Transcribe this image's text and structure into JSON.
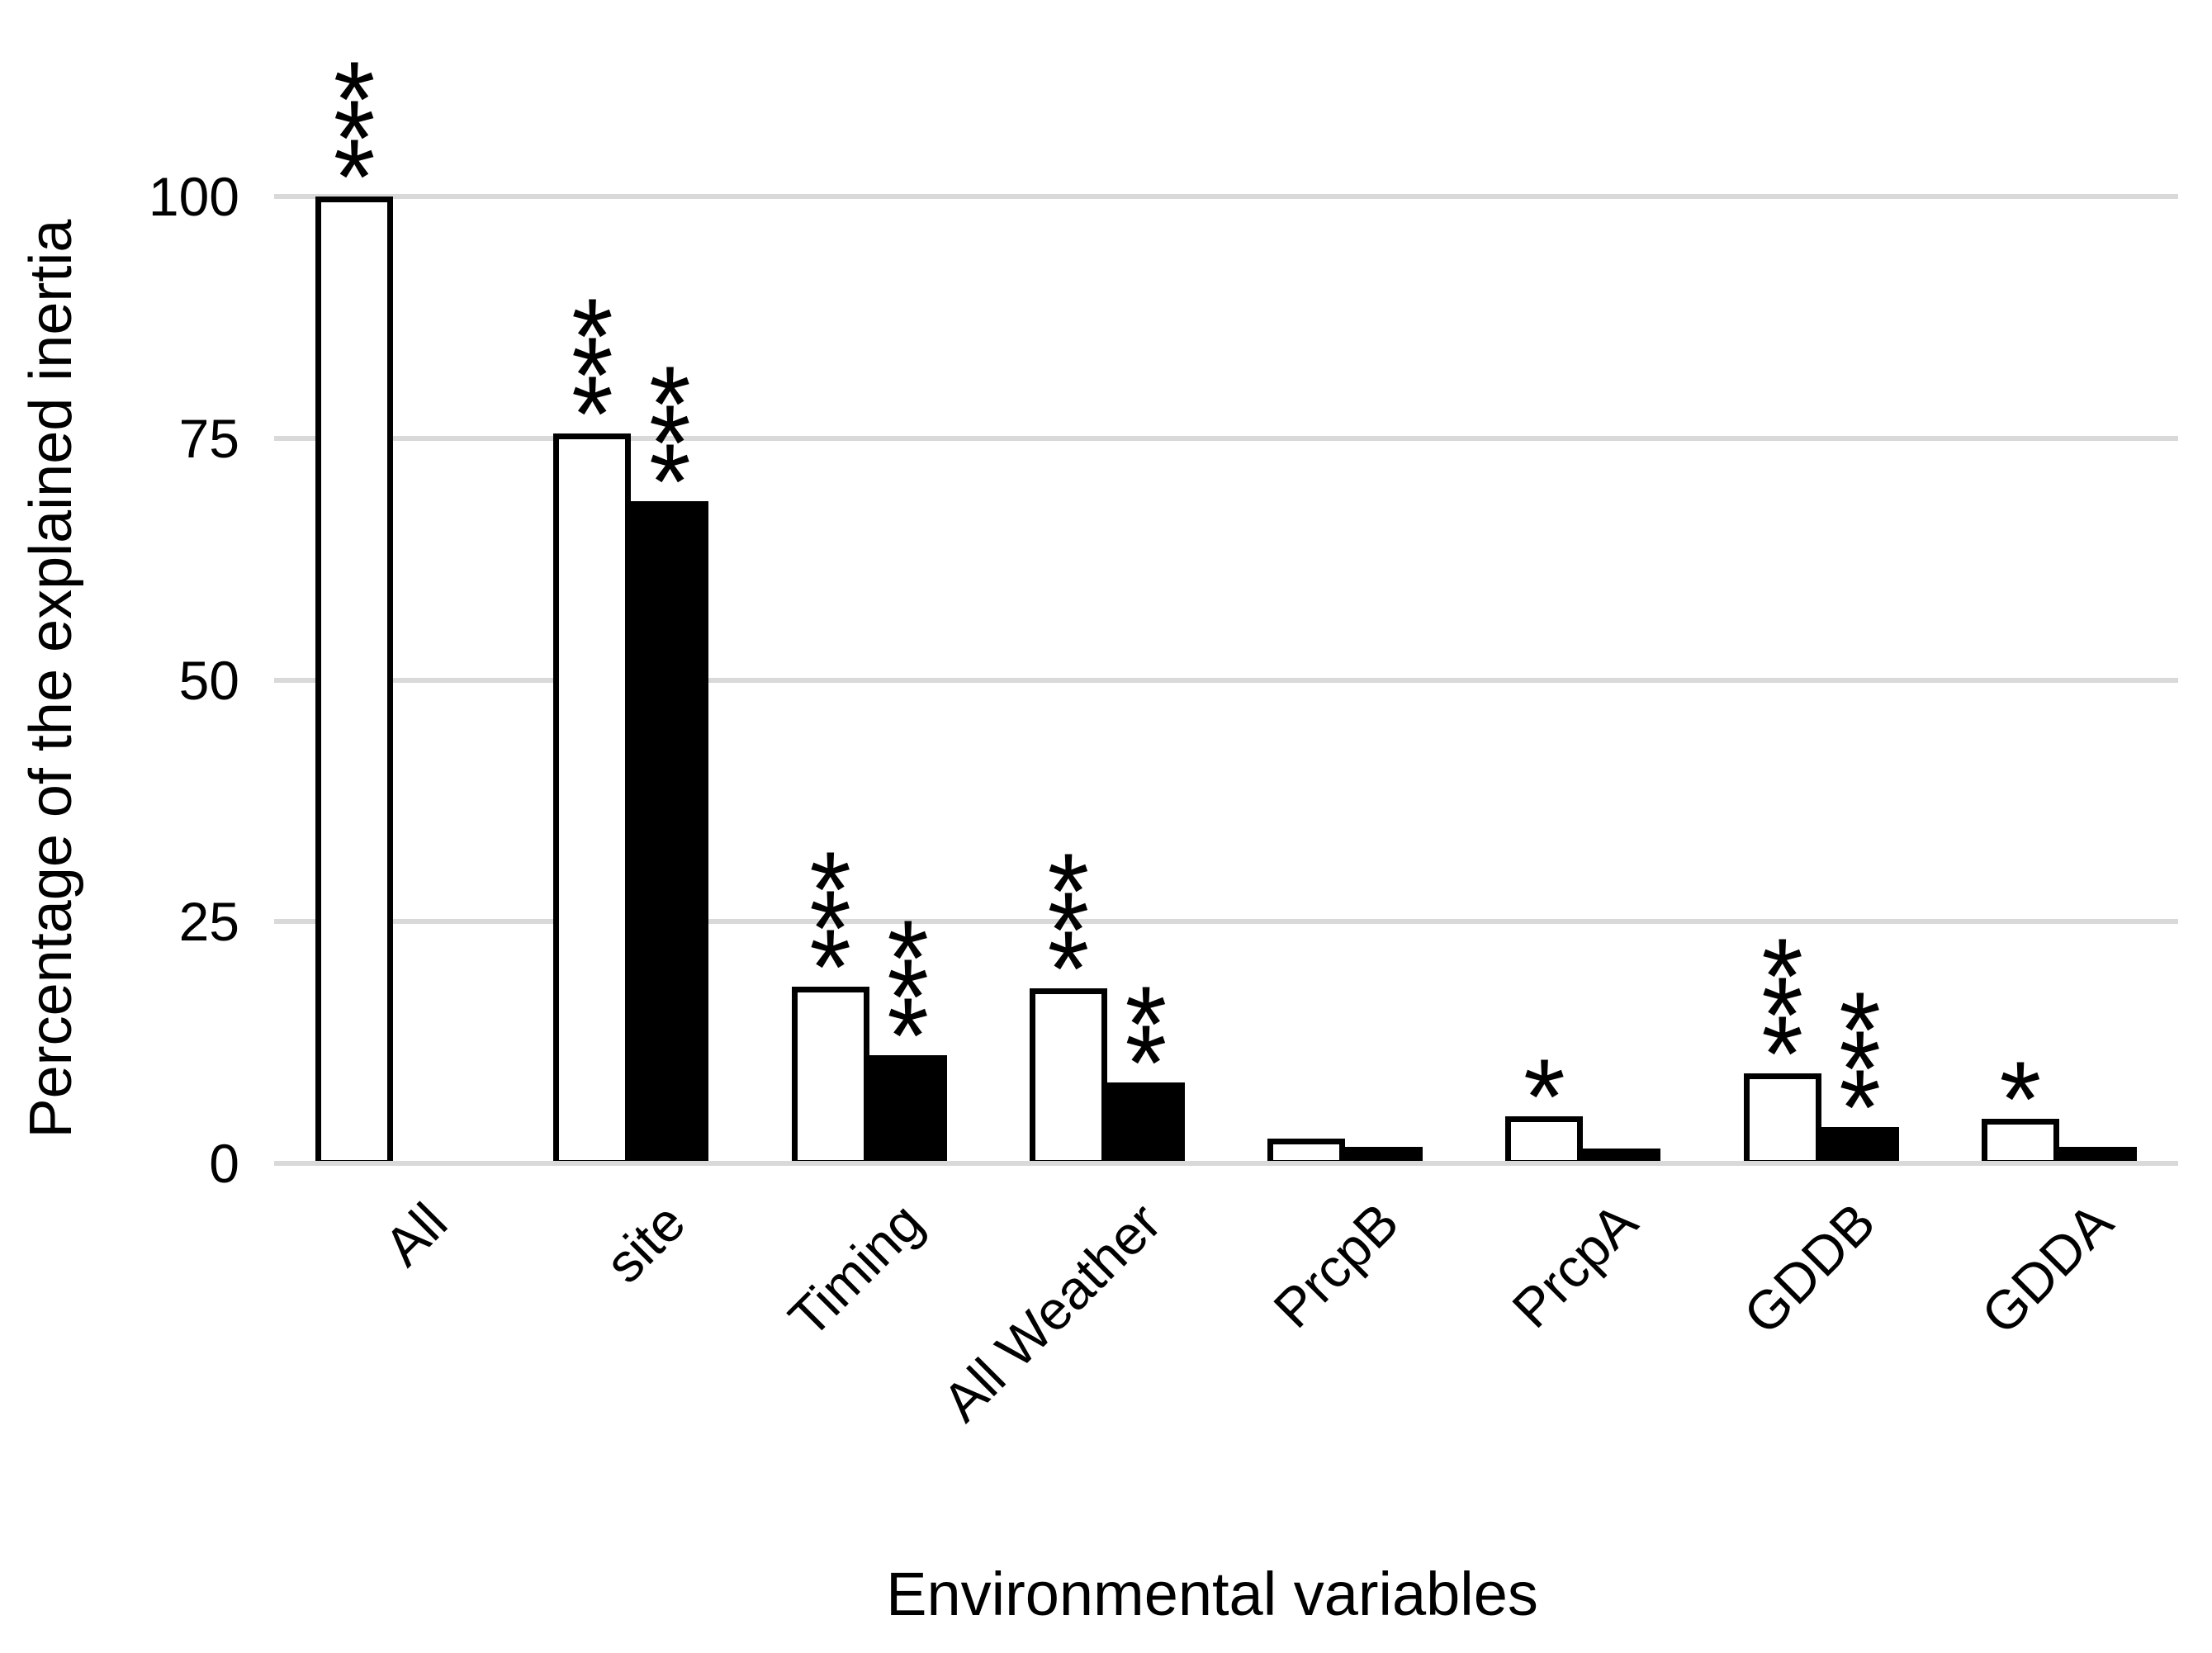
{
  "chart_data": {
    "type": "bar",
    "title": "",
    "xlabel": "Environmental variables",
    "ylabel": "Percentage of the explained inertia",
    "categories": [
      "All",
      "site",
      "Timing",
      "All Weather",
      "PrcpB",
      "PrcpA",
      "GDDB",
      "GDDA"
    ],
    "series": [
      {
        "name": "white-open-bars",
        "fill": "#ffffff",
        "stroke": "#000000",
        "values": [
          100,
          75.5,
          18.3,
          18.1,
          2.6,
          4.9,
          9.3,
          4.6
        ],
        "significance": [
          "***",
          "***",
          "***",
          "***",
          "",
          "*",
          "***",
          "*"
        ]
      },
      {
        "name": "black-filled-bars",
        "fill": "#000000",
        "stroke": "#000000",
        "values": [
          null,
          68.5,
          11.2,
          8.4,
          1.7,
          1.5,
          3.8,
          1.7
        ],
        "significance": [
          "",
          "***",
          "***",
          "**",
          "",
          "",
          "***",
          ""
        ]
      }
    ],
    "yticks": [
      "0",
      "25",
      "50",
      "75",
      "100"
    ],
    "ylim": [
      0,
      100
    ],
    "grid": "horizontal",
    "legend": "none",
    "gridline_color": "#d9d9d9",
    "background": "#ffffff"
  }
}
